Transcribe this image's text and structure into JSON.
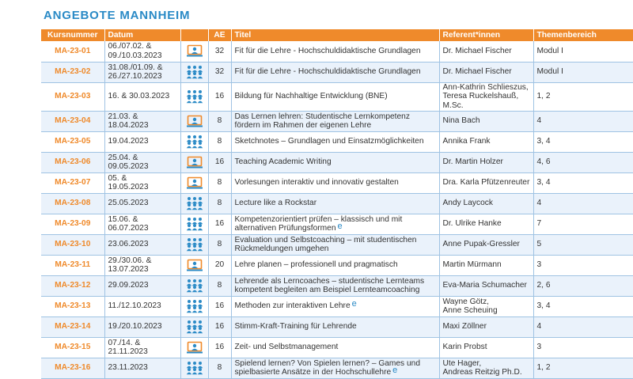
{
  "page_title": "ANGEBOTE MANNHEIM",
  "columns": {
    "kursnummer": "Kursnummer",
    "datum": "Datum",
    "format": "",
    "ae": "AE",
    "titel": "Titel",
    "referent": "Referent*innen",
    "themenbereich": "Themenbereich"
  },
  "colors": {
    "header_bg": "#ef8a2b",
    "accent_orange": "#ef8a2b",
    "accent_blue": "#2a8ac6",
    "row_alt": "#eaf2fb",
    "grid": "#9fc3e3"
  },
  "format_icons": {
    "online": "online-presenter-icon",
    "presence": "group-people-icon"
  },
  "rows": [
    {
      "nr": "MA-23-01",
      "date": [
        "06./07.02. &",
        "09./10.03.2023"
      ],
      "format": "online",
      "ae": "32",
      "title": [
        "Fit für die Lehre - Hochschuldidaktische Grundlagen"
      ],
      "elearning": "",
      "ref": [
        "Dr. Michael Fischer"
      ],
      "theme": "Modul I"
    },
    {
      "nr": "MA-23-02",
      "date": [
        "31.08./01.09. &",
        "26./27.10.2023"
      ],
      "format": "presence",
      "ae": "32",
      "title": [
        "Fit für die Lehre - Hochschuldidaktische Grundlagen"
      ],
      "elearning": "",
      "ref": [
        "Dr. Michael Fischer"
      ],
      "theme": "Modul I"
    },
    {
      "nr": "MA-23-03",
      "date": [
        "16. & 30.03.2023"
      ],
      "format": "presence",
      "ae": "16",
      "title": [
        "Bildung für Nachhaltige Entwicklung (BNE)"
      ],
      "elearning": "",
      "ref": [
        "Ann-Kathrin Schlieszus,",
        "Teresa Ruckelshauß,",
        "M.Sc."
      ],
      "theme": "1, 2"
    },
    {
      "nr": "MA-23-04",
      "date": [
        "21.03. &",
        "18.04.2023"
      ],
      "format": "online",
      "ae": "8",
      "title": [
        "Das Lernen lehren: Studentische Lernkompetenz",
        "fördern im Rahmen der eigenen Lehre"
      ],
      "elearning": "",
      "ref": [
        "Nina Bach"
      ],
      "theme": "4"
    },
    {
      "nr": "MA-23-05",
      "date": [
        "19.04.2023"
      ],
      "format": "presence",
      "ae": "8",
      "title": [
        "Sketchnotes – Grundlagen und Einsatzmöglichkeiten"
      ],
      "elearning": "",
      "ref": [
        "Annika Frank"
      ],
      "theme": "3, 4"
    },
    {
      "nr": "MA-23-06",
      "date": [
        "25.04. &",
        "09.05.2023"
      ],
      "format": "online",
      "ae": "16",
      "title": [
        "Teaching Academic Writing"
      ],
      "elearning": "",
      "ref": [
        "Dr. Martin Holzer"
      ],
      "theme": "4, 6"
    },
    {
      "nr": "MA-23-07",
      "date": [
        "05. &",
        "19.05.2023"
      ],
      "format": "online",
      "ae": "8",
      "title": [
        "Vorlesungen interaktiv und innovativ gestalten"
      ],
      "elearning": "",
      "ref": [
        "Dra. Karla Pfützenreuter"
      ],
      "theme": "3, 4"
    },
    {
      "nr": "MA-23-08",
      "date": [
        "25.05.2023"
      ],
      "format": "presence",
      "ae": "8",
      "title": [
        "Lecture like a Rockstar"
      ],
      "elearning": "",
      "ref": [
        "Andy Laycock"
      ],
      "theme": "4"
    },
    {
      "nr": "MA-23-09",
      "date": [
        "15.06. &",
        "06.07.2023"
      ],
      "format": "presence",
      "ae": "16",
      "title": [
        "Kompetenzorientiert prüfen – klassisch und mit",
        "alternativen Prüfungsformen"
      ],
      "elearning": "e",
      "ref": [
        "Dr. Ulrike Hanke"
      ],
      "theme": "7"
    },
    {
      "nr": "MA-23-10",
      "date": [
        "23.06.2023"
      ],
      "format": "presence",
      "ae": "8",
      "title": [
        "Evaluation und Selbstcoaching – mit studentischen",
        "Rückmeldungen umgehen"
      ],
      "elearning": "",
      "ref": [
        "Anne Pupak-Gressler"
      ],
      "theme": "5"
    },
    {
      "nr": "MA-23-11",
      "date": [
        "29./30.06. &",
        "13.07.2023"
      ],
      "format": "online",
      "ae": "20",
      "title": [
        "Lehre planen – professionell und pragmatisch"
      ],
      "elearning": "",
      "ref": [
        "Martin Mürmann"
      ],
      "theme": "3"
    },
    {
      "nr": "MA-23-12",
      "date": [
        "29.09.2023"
      ],
      "format": "presence",
      "ae": "8",
      "title": [
        "Lehrende als Lerncoaches – studentische Lernteams",
        "kompetent begleiten am Beispiel Lernteamcoaching"
      ],
      "elearning": "",
      "ref": [
        "Eva-Maria Schumacher"
      ],
      "theme": "2, 6"
    },
    {
      "nr": "MA-23-13",
      "date": [
        "11./12.10.2023"
      ],
      "format": "presence",
      "ae": "16",
      "title": [
        "Methoden zur interaktiven Lehre"
      ],
      "elearning": "e",
      "ref": [
        "Wayne Götz,",
        "Anne Scheuing"
      ],
      "theme": "3, 4"
    },
    {
      "nr": "MA-23-14",
      "date": [
        "19./20.10.2023"
      ],
      "format": "presence",
      "ae": "16",
      "title": [
        "Stimm-Kraft-Training für Lehrende"
      ],
      "elearning": "",
      "ref": [
        "Maxi Zöllner"
      ],
      "theme": "4"
    },
    {
      "nr": "MA-23-15",
      "date": [
        "07./14. &",
        "21.11.2023"
      ],
      "format": "online",
      "ae": "16",
      "title": [
        "Zeit- und Selbstmanagement"
      ],
      "elearning": "",
      "ref": [
        "Karin Probst"
      ],
      "theme": "3"
    },
    {
      "nr": "MA-23-16",
      "date": [
        "23.11.2023"
      ],
      "format": "presence",
      "ae": "8",
      "title": [
        "Spielend lernen? Von Spielen lernen? – Games und",
        "spielbasierte Ansätze in der Hochschullehre"
      ],
      "elearning": "e",
      "ref": [
        "Ute Hager,",
        "Andreas Reitzig Ph.D."
      ],
      "theme": "1, 2"
    }
  ]
}
